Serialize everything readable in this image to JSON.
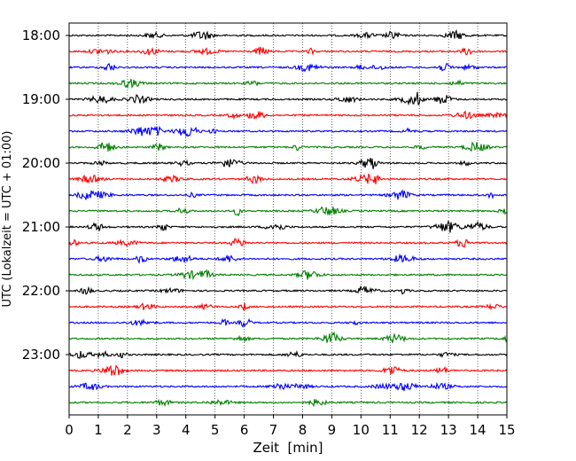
{
  "chart_data": {
    "type": "line",
    "title": "",
    "xlabel": "Zeit  [min]",
    "ylabel": "UTC (Lokalzeit = UTC + 01:00)",
    "xlim": [
      0,
      15
    ],
    "x_ticks": [
      "0",
      "1",
      "2",
      "3",
      "4",
      "5",
      "6",
      "7",
      "8",
      "9",
      "10",
      "11",
      "12",
      "13",
      "14",
      "15"
    ],
    "y_tick_labels": [
      "18:00",
      "19:00",
      "20:00",
      "21:00",
      "22:00",
      "23:00"
    ],
    "grid": "vertical dotted",
    "trace_colors": [
      "#000000",
      "#ff0000",
      "#0000ff",
      "#008000"
    ],
    "traces": [
      {
        "start": "18:00",
        "color": "#000000"
      },
      {
        "start": "18:15",
        "color": "#ff0000"
      },
      {
        "start": "18:30",
        "color": "#0000ff"
      },
      {
        "start": "18:45",
        "color": "#008000"
      },
      {
        "start": "19:00",
        "color": "#000000"
      },
      {
        "start": "19:15",
        "color": "#ff0000"
      },
      {
        "start": "19:30",
        "color": "#0000ff"
      },
      {
        "start": "19:45",
        "color": "#008000"
      },
      {
        "start": "20:00",
        "color": "#000000"
      },
      {
        "start": "20:15",
        "color": "#ff0000"
      },
      {
        "start": "20:30",
        "color": "#0000ff"
      },
      {
        "start": "20:45",
        "color": "#008000"
      },
      {
        "start": "21:00",
        "color": "#000000"
      },
      {
        "start": "21:15",
        "color": "#ff0000"
      },
      {
        "start": "21:30",
        "color": "#0000ff"
      },
      {
        "start": "21:45",
        "color": "#008000"
      },
      {
        "start": "22:00",
        "color": "#000000"
      },
      {
        "start": "22:15",
        "color": "#ff0000"
      },
      {
        "start": "22:30",
        "color": "#0000ff"
      },
      {
        "start": "22:45",
        "color": "#008000"
      },
      {
        "start": "23:00",
        "color": "#000000"
      },
      {
        "start": "23:15",
        "color": "#ff0000"
      },
      {
        "start": "23:30",
        "color": "#0000ff"
      },
      {
        "start": "23:45",
        "color": "#008000"
      }
    ]
  }
}
